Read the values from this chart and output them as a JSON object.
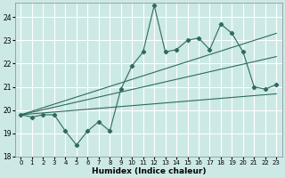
{
  "xlabel": "Humidex (Indice chaleur)",
  "xlim": [
    -0.5,
    23.5
  ],
  "ylim": [
    18,
    24.6
  ],
  "yticks": [
    18,
    19,
    20,
    21,
    22,
    23,
    24
  ],
  "xticks": [
    0,
    1,
    2,
    3,
    4,
    5,
    6,
    7,
    8,
    9,
    10,
    11,
    12,
    13,
    14,
    15,
    16,
    17,
    18,
    19,
    20,
    21,
    22,
    23
  ],
  "bg_color": "#cce9e6",
  "grid_color": "#ffffff",
  "line_color": "#2d6b5e",
  "line1_x": [
    0,
    1,
    2,
    3,
    4,
    5,
    6,
    7,
    8,
    9,
    10,
    11,
    12,
    13,
    14,
    15,
    16,
    17,
    18,
    19,
    20,
    21,
    22,
    23
  ],
  "line1_y": [
    19.8,
    19.7,
    19.8,
    19.8,
    19.1,
    18.5,
    19.1,
    19.5,
    19.1,
    20.9,
    21.9,
    22.5,
    24.5,
    22.5,
    22.6,
    23.0,
    23.1,
    22.6,
    23.7,
    23.3,
    22.5,
    21.0,
    20.9,
    21.1
  ],
  "trend1_x": [
    0,
    23
  ],
  "trend1_y": [
    19.8,
    23.3
  ],
  "trend2_x": [
    0,
    23
  ],
  "trend2_y": [
    19.8,
    22.3
  ],
  "trend3_x": [
    0,
    23
  ],
  "trend3_y": [
    19.8,
    20.7
  ]
}
